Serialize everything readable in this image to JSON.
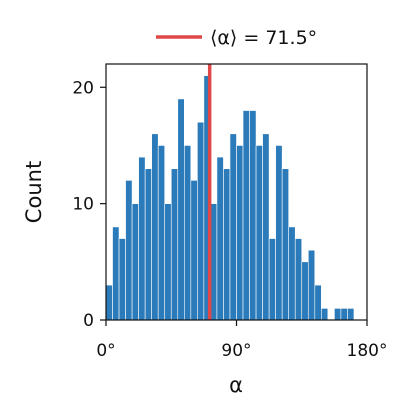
{
  "chart_data": {
    "type": "bar",
    "title": "",
    "xlabel": "α",
    "ylabel": "Count",
    "xlim": [
      0,
      180
    ],
    "ylim": [
      0,
      22
    ],
    "bin_width": 4.5,
    "bin_starts": [
      0,
      4.5,
      9,
      13.5,
      18,
      22.5,
      27,
      31.5,
      36,
      40.5,
      45,
      49.5,
      54,
      58.5,
      63,
      67.5,
      72,
      76.5,
      81,
      85.5,
      90,
      94.5,
      99,
      103.5,
      108,
      112.5,
      117,
      121.5,
      126,
      130.5,
      135,
      139.5,
      144,
      148.5,
      153,
      157.5,
      162,
      166.5,
      171,
      175.5
    ],
    "values": [
      3,
      8,
      7,
      12,
      10,
      14,
      13,
      16,
      15,
      10,
      13,
      19,
      15,
      12,
      17,
      21,
      10,
      14,
      13,
      16,
      15,
      18,
      18,
      15,
      16,
      7,
      15,
      13,
      8,
      7,
      5,
      6,
      3,
      1,
      0,
      1,
      1,
      1,
      0,
      0
    ],
    "x_ticks": [
      {
        "value": 0,
        "label": "0°"
      },
      {
        "value": 90,
        "label": "90°"
      },
      {
        "value": 180,
        "label": "180°"
      }
    ],
    "y_ticks": [
      {
        "value": 0,
        "label": "0"
      },
      {
        "value": 10,
        "label": "10"
      },
      {
        "value": 20,
        "label": "20"
      }
    ],
    "mean_line": {
      "value": 71.5,
      "label": "⟨α⟩ = 71.5°",
      "color": "#e04848"
    },
    "bar_color": "#2b7bba",
    "grid": false,
    "legend_placement": "top-center"
  }
}
